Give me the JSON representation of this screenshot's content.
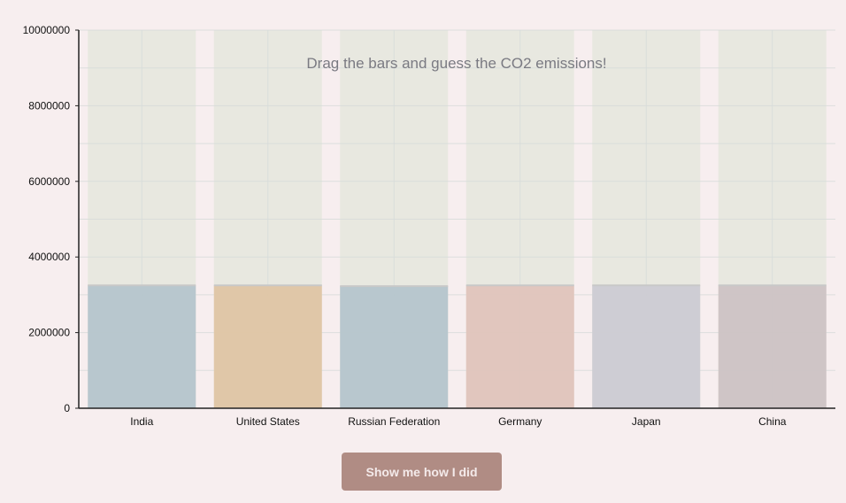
{
  "instruction": "Drag the bars and guess the CO2 emissions!",
  "button": {
    "label": "Show me how I did"
  },
  "chart_data": {
    "type": "bar",
    "categories": [
      "India",
      "United States",
      "Russian Federation",
      "Germany",
      "Japan",
      "China"
    ],
    "values": [
      3250000,
      3250000,
      3230000,
      3250000,
      3250000,
      3250000
    ],
    "ylim": [
      0,
      10000000
    ],
    "yticks": [
      "0",
      "2000000",
      "4000000",
      "6000000",
      "8000000",
      "10000000"
    ],
    "colors": [
      "#b5c5cc",
      "#dfc5a4",
      "#b5c5cc",
      "#e0c4bc",
      "#cccbd3",
      "#cdc3c4"
    ],
    "track_color": "#e8e8e0",
    "grid": true,
    "legend": "none"
  }
}
